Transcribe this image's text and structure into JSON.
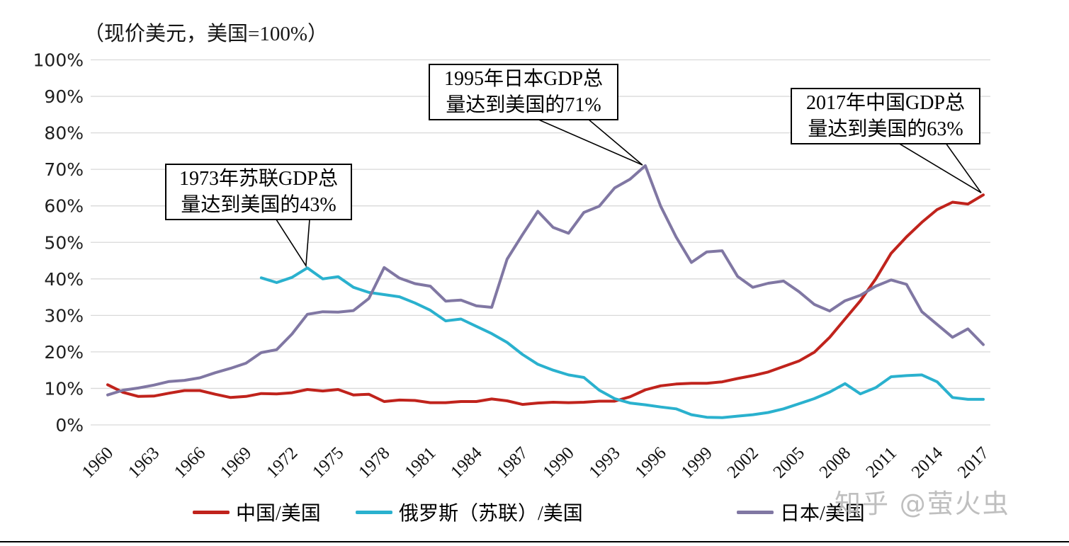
{
  "watermark": {
    "text": "知乎 @萤火虫"
  },
  "chart_data": {
    "type": "line",
    "title": "（现价美元，美国=100%）",
    "xlabel": "",
    "ylabel": "",
    "ylim": [
      0,
      100
    ],
    "grid": "horizontal-only",
    "legend_position": "bottom",
    "y_ticks": [
      "0%",
      "10%",
      "20%",
      "30%",
      "40%",
      "50%",
      "60%",
      "70%",
      "80%",
      "90%",
      "100%"
    ],
    "x_ticks": [
      1960,
      1963,
      1966,
      1969,
      1972,
      1975,
      1978,
      1981,
      1984,
      1987,
      1990,
      1993,
      1996,
      1999,
      2002,
      2005,
      2008,
      2011,
      2014,
      2017
    ],
    "x": [
      1960,
      1961,
      1962,
      1963,
      1964,
      1965,
      1966,
      1967,
      1968,
      1969,
      1970,
      1971,
      1972,
      1973,
      1974,
      1975,
      1976,
      1977,
      1978,
      1979,
      1980,
      1981,
      1982,
      1983,
      1984,
      1985,
      1986,
      1987,
      1988,
      1989,
      1990,
      1991,
      1992,
      1993,
      1994,
      1995,
      1996,
      1997,
      1998,
      1999,
      2000,
      2001,
      2002,
      2003,
      2004,
      2005,
      2006,
      2007,
      2008,
      2009,
      2010,
      2011,
      2012,
      2013,
      2014,
      2015,
      2016,
      2017
    ],
    "series": [
      {
        "name": "中国/美国",
        "color": "#c0231c",
        "values": [
          11.0,
          8.9,
          7.8,
          7.9,
          8.7,
          9.4,
          9.4,
          8.4,
          7.5,
          7.8,
          8.6,
          8.5,
          8.8,
          9.7,
          9.3,
          9.7,
          8.2,
          8.4,
          6.4,
          6.8,
          6.7,
          6.1,
          6.1,
          6.4,
          6.4,
          7.1,
          6.6,
          5.6,
          6.0,
          6.2,
          6.1,
          6.2,
          6.5,
          6.5,
          7.7,
          9.6,
          10.7,
          11.2,
          11.4,
          11.4,
          11.8,
          12.7,
          13.5,
          14.5,
          16.0,
          17.5,
          19.9,
          24.0,
          29.0,
          34.0,
          40.0,
          47.0,
          51.5,
          55.5,
          59.0,
          61.0,
          60.5,
          63.0
        ]
      },
      {
        "name": "俄罗斯（苏联）/美国",
        "color": "#2ab1ce",
        "values": [
          null,
          null,
          null,
          null,
          null,
          null,
          null,
          null,
          null,
          null,
          40.3,
          39.0,
          40.4,
          43.0,
          40.0,
          40.6,
          37.7,
          36.3,
          35.7,
          35.1,
          33.4,
          31.4,
          28.5,
          29.0,
          27.0,
          25.0,
          22.6,
          19.3,
          16.6,
          15.0,
          13.7,
          13.0,
          9.5,
          7.2,
          6.0,
          5.5,
          4.9,
          4.4,
          2.8,
          2.1,
          2.0,
          2.4,
          2.8,
          3.4,
          4.4,
          5.8,
          7.2,
          9.0,
          11.3,
          8.5,
          10.2,
          13.2,
          13.5,
          13.7,
          11.8,
          7.5,
          7.0,
          7.0
        ]
      },
      {
        "name": "日本/美国",
        "color": "#8077a3",
        "values": [
          8.2,
          9.5,
          10.1,
          10.9,
          11.9,
          12.2,
          12.9,
          14.3,
          15.5,
          16.9,
          19.8,
          20.6,
          24.9,
          30.3,
          31.0,
          30.9,
          31.3,
          34.6,
          43.1,
          40.2,
          38.7,
          38.0,
          33.9,
          34.2,
          32.6,
          32.2,
          45.4,
          52.1,
          58.5,
          54.1,
          52.5,
          58.2,
          59.9,
          64.9,
          67.3,
          71.0,
          59.9,
          51.5,
          44.5,
          47.4,
          47.7,
          40.7,
          37.7,
          38.8,
          39.4,
          36.5,
          33.0,
          31.2,
          34.0,
          35.5,
          38.0,
          39.7,
          38.5,
          31.0,
          27.5,
          24.0,
          26.3,
          22.0
        ]
      }
    ],
    "annotations": [
      {
        "line1": "1973年苏联GDP总",
        "line2": "量达到美国的43%",
        "target_year": 1973,
        "target_value": 43
      },
      {
        "line1": "1995年日本GDP总",
        "line2": "量达到美国的71%",
        "target_year": 1995,
        "target_value": 71
      },
      {
        "line1": "2017年中国GDP总",
        "line2": "量达到美国的63%",
        "target_year": 2017,
        "target_value": 63
      }
    ]
  }
}
